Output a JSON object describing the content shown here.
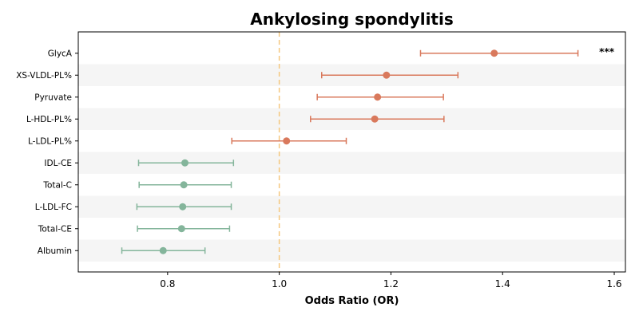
{
  "chart_data": {
    "type": "forest",
    "title": "Ankylosing spondylitis",
    "xlabel": "Odds Ratio (OR)",
    "ylabel": "",
    "xlim": [
      0.64,
      1.62
    ],
    "xticks": [
      "0.8",
      "1.0",
      "1.2",
      "1.4",
      "1.6"
    ],
    "xtick_values": [
      0.8,
      1.0,
      1.2,
      1.4,
      1.6
    ],
    "reference_line": 1.0,
    "colors": {
      "positive": "#d9795c",
      "negative": "#84b59b",
      "reference": "#f5c77e",
      "band": "#f5f5f5"
    },
    "rows": [
      {
        "label": "GlycA",
        "or": 1.385,
        "lower": 1.253,
        "upper": 1.535,
        "direction": "positive",
        "annotation": "***"
      },
      {
        "label": "XS-VLDL-PL%",
        "or": 1.192,
        "lower": 1.076,
        "upper": 1.32,
        "direction": "positive",
        "annotation": ""
      },
      {
        "label": "Pyruvate",
        "or": 1.176,
        "lower": 1.068,
        "upper": 1.294,
        "direction": "positive",
        "annotation": ""
      },
      {
        "label": "L-HDL-PL%",
        "or": 1.171,
        "lower": 1.056,
        "upper": 1.295,
        "direction": "positive",
        "annotation": ""
      },
      {
        "label": "L-LDL-PL%",
        "or": 1.013,
        "lower": 0.915,
        "upper": 1.12,
        "direction": "positive",
        "annotation": ""
      },
      {
        "label": "IDL-CE",
        "or": 0.831,
        "lower": 0.748,
        "upper": 0.918,
        "direction": "negative",
        "annotation": ""
      },
      {
        "label": "Total-C",
        "or": 0.829,
        "lower": 0.749,
        "upper": 0.914,
        "direction": "negative",
        "annotation": ""
      },
      {
        "label": "L-LDL-FC",
        "or": 0.827,
        "lower": 0.745,
        "upper": 0.914,
        "direction": "negative",
        "annotation": ""
      },
      {
        "label": "Total-CE",
        "or": 0.825,
        "lower": 0.746,
        "upper": 0.911,
        "direction": "negative",
        "annotation": ""
      },
      {
        "label": "Albumin",
        "or": 0.792,
        "lower": 0.718,
        "upper": 0.867,
        "direction": "negative",
        "annotation": ""
      }
    ],
    "grid": false,
    "alternating_row_bands": true
  }
}
